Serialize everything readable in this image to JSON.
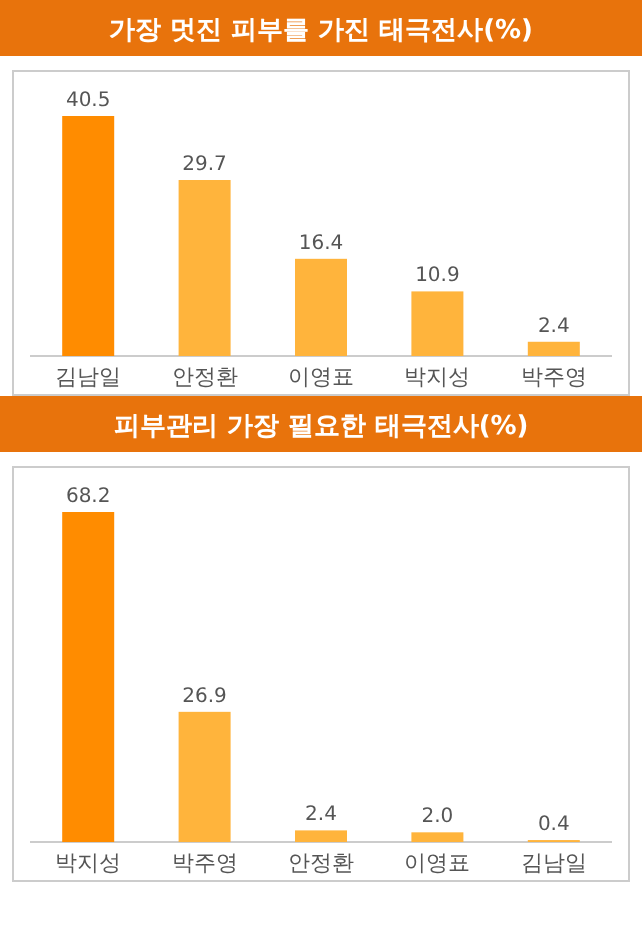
{
  "chart_data": [
    {
      "type": "bar",
      "title": "가장 멋진 피부를 가진 태극전사(%)",
      "categories": [
        "김남일",
        "안정환",
        "이영표",
        "박지성",
        "박주영"
      ],
      "values": [
        40.5,
        29.7,
        16.4,
        10.9,
        2.4
      ],
      "colors": [
        "#ff8c00",
        "#ffb43c",
        "#ffb43c",
        "#ffb43c",
        "#ffb43c"
      ],
      "data_labels": true
    },
    {
      "type": "bar",
      "title": "피부관리 가장 필요한 태극전사(%)",
      "categories": [
        "박지성",
        "박주영",
        "안정환",
        "이영표",
        "김남일"
      ],
      "values": [
        68.2,
        26.9,
        2.4,
        2.0,
        0.4
      ],
      "value_labels": [
        "68.2",
        "26.9",
        "2.4",
        "2.0",
        "0.4"
      ],
      "colors": [
        "#ff8c00",
        "#ffb43c",
        "#ffb43c",
        "#ffb43c",
        "#ffb43c"
      ]
    }
  ]
}
